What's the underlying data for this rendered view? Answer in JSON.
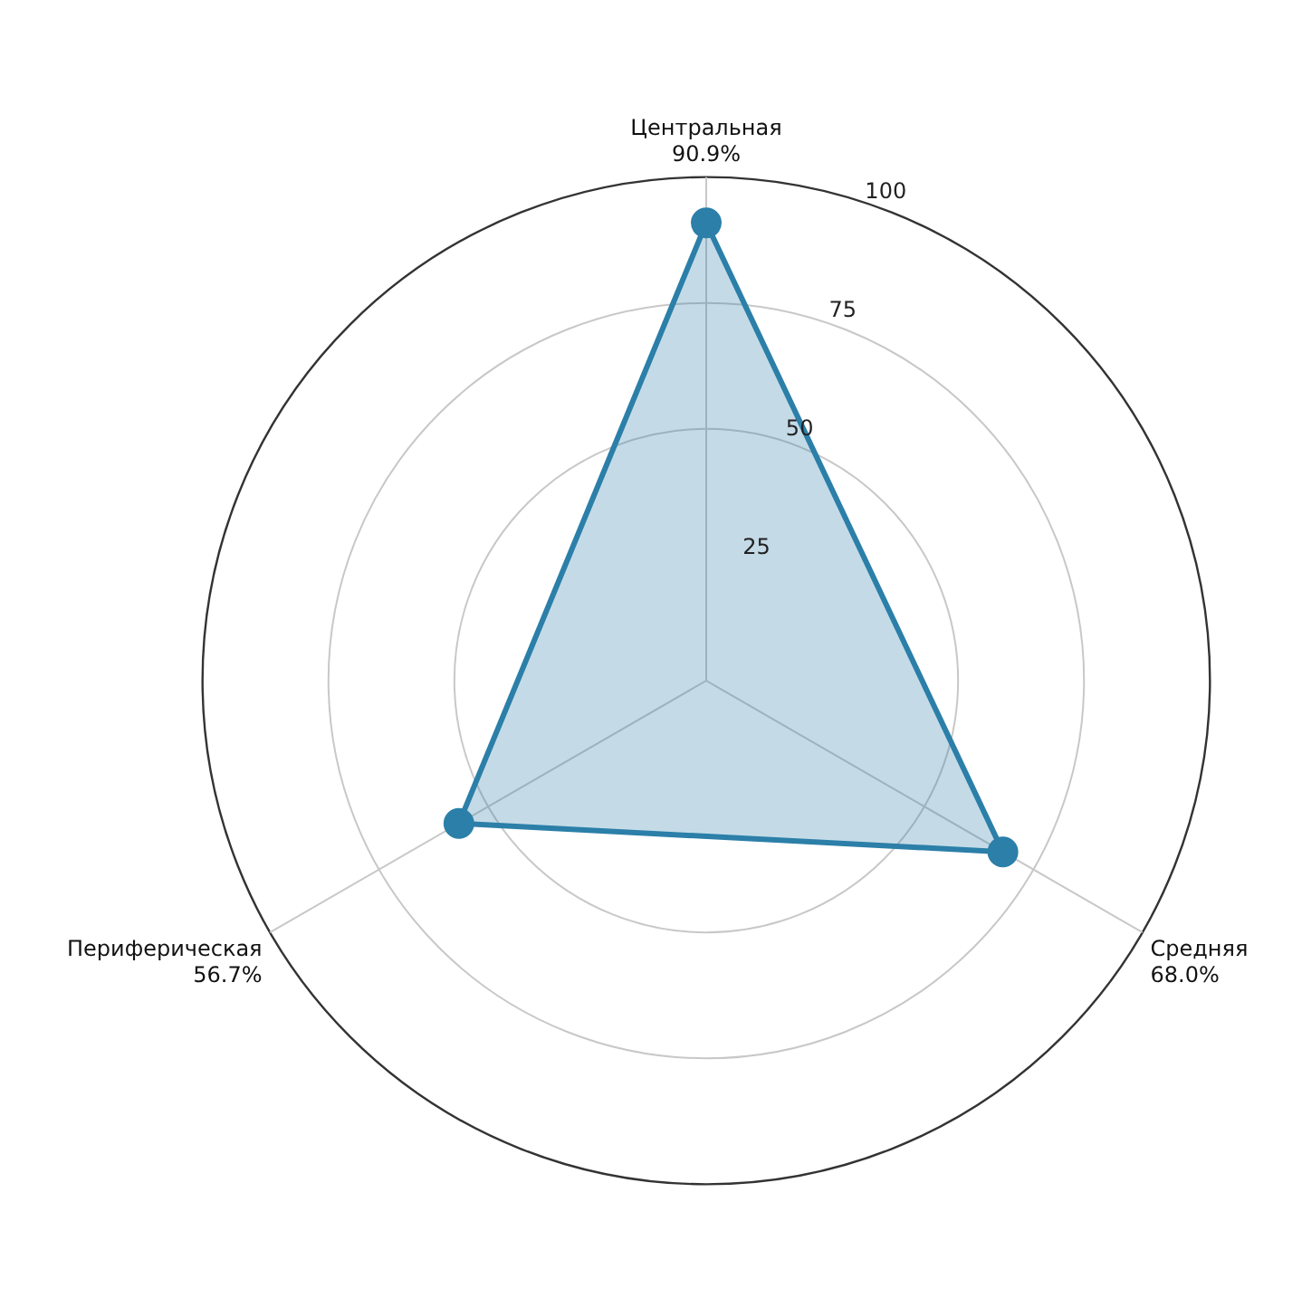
{
  "chart_data": {
    "type": "radar",
    "categories": [
      "Центральная",
      "Средняя",
      "Периферическая"
    ],
    "series": [
      {
        "color": "#2b7fa8",
        "values": [
          90.9,
          68.0,
          56.7
        ]
      }
    ],
    "value_labels": [
      "90.9%",
      "68.0%",
      "56.7%"
    ],
    "ylim": [
      0,
      100
    ],
    "yticks": [
      25,
      50,
      75,
      100
    ],
    "grid": true,
    "legend": false,
    "marker": "circle"
  }
}
